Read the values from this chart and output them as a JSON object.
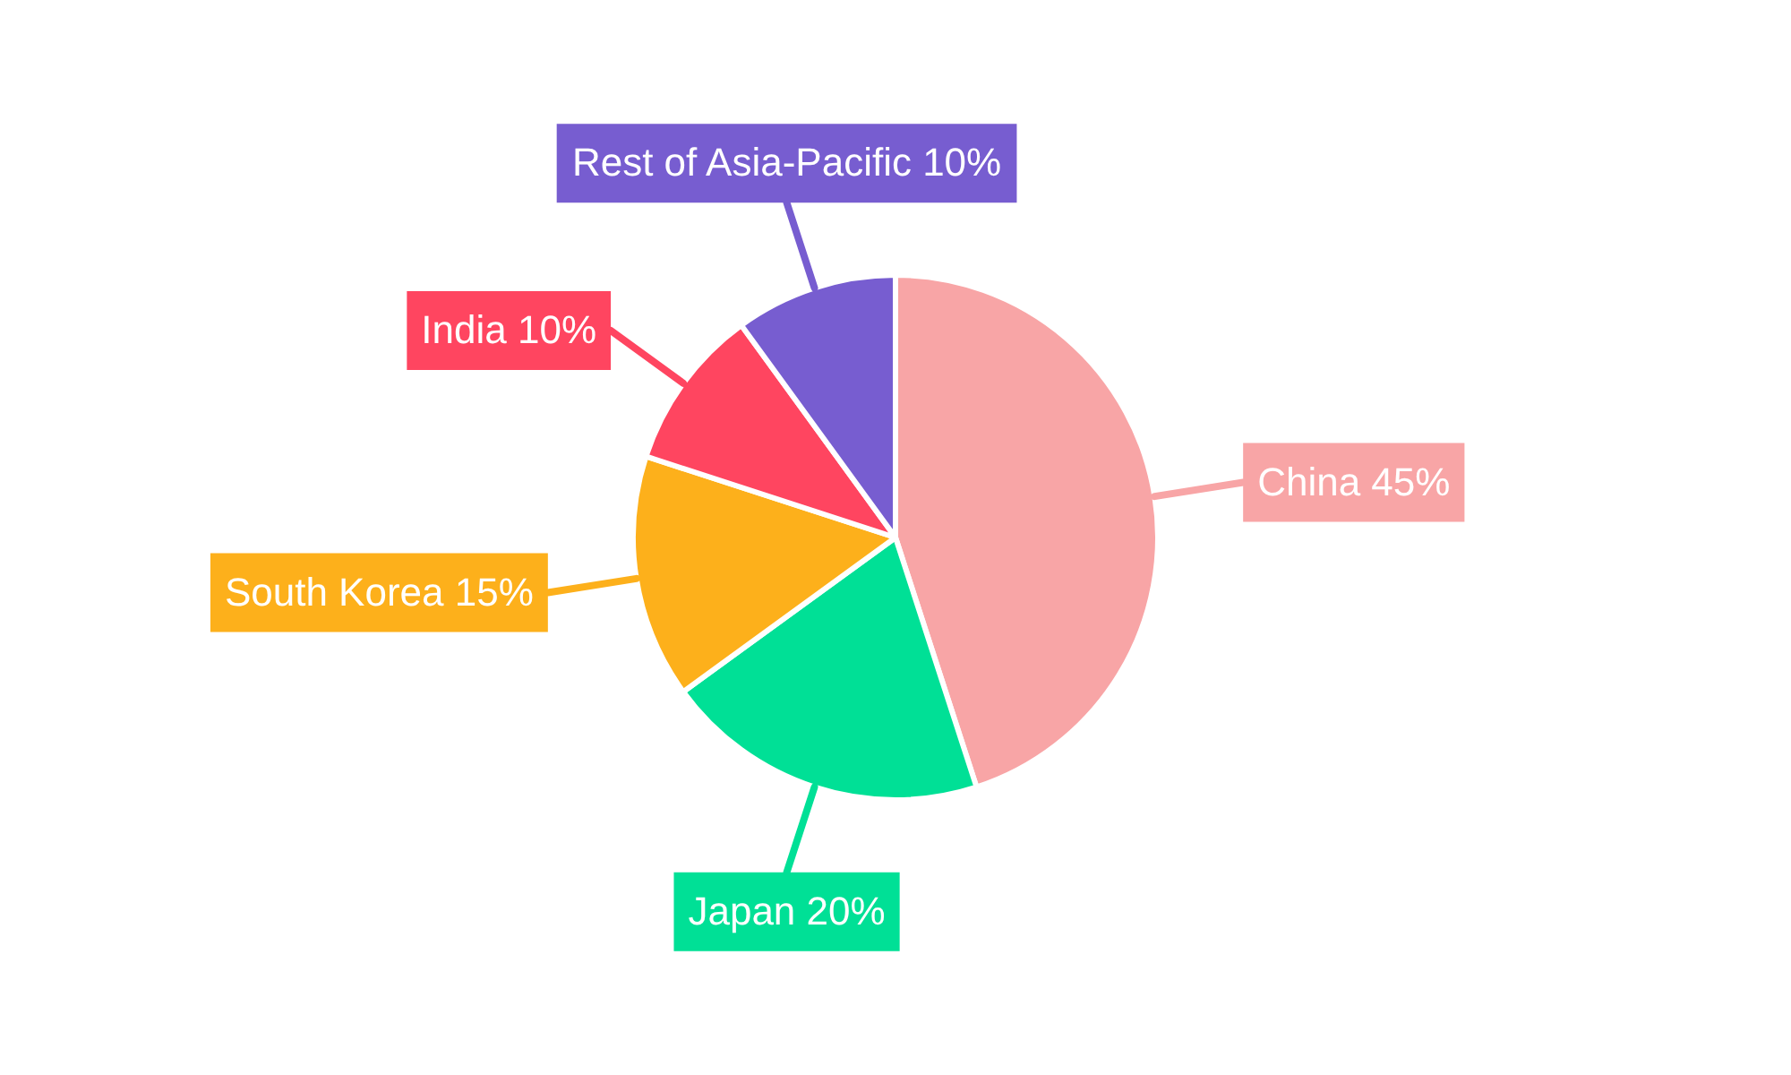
{
  "chart_data": {
    "type": "pie",
    "categories": [
      "China",
      "Japan",
      "South Korea",
      "India",
      "Rest of Asia-Pacific"
    ],
    "values": [
      45,
      20,
      15,
      10,
      10
    ],
    "value_labels": [
      "45%",
      "20%",
      "15%",
      "10%",
      "10%"
    ],
    "colors": [
      "#f8a5a6",
      "#00e096",
      "#fdb01b",
      "#ff4560",
      "#775dd0"
    ],
    "legend": false
  }
}
